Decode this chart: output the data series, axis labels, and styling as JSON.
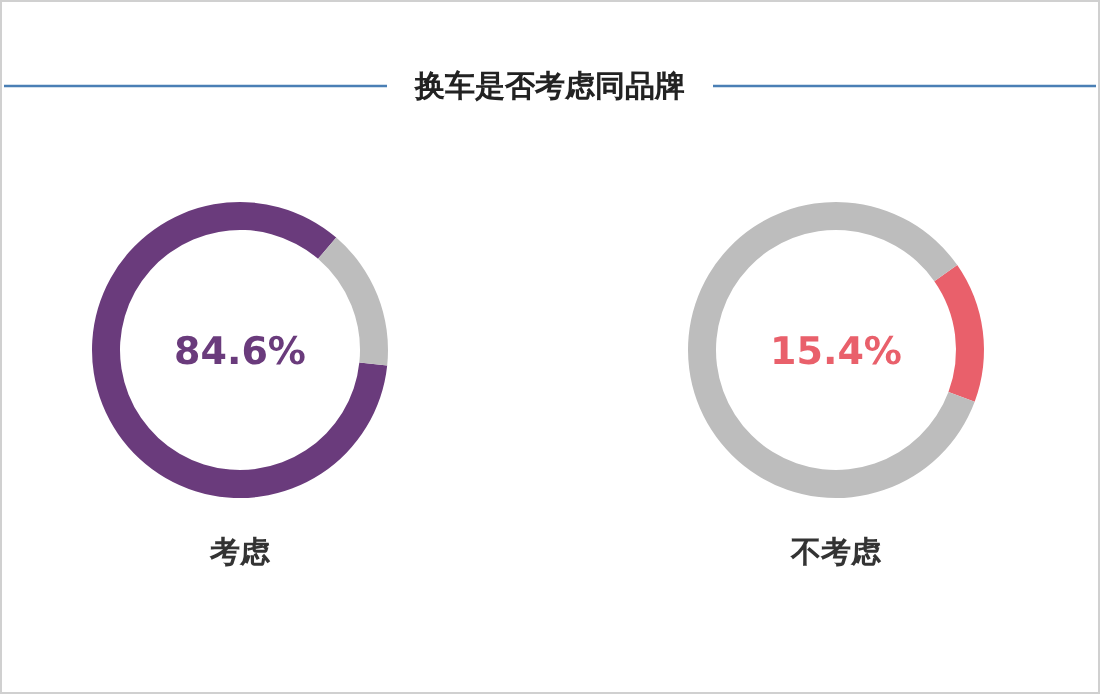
{
  "chart_data": [
    {
      "type": "other",
      "title": "换车是否考虑同品牌"
    },
    {
      "type": "donut",
      "xlabel": "考虑",
      "categories": [
        null,
        null
      ],
      "values": [
        84.6,
        15.4
      ],
      "colors": [
        "#6a3b7c",
        "#bdbdbd"
      ],
      "annotations": [
        "84.6%"
      ]
    },
    {
      "type": "donut",
      "xlabel": "不考虑",
      "categories": [
        null,
        null
      ],
      "values": [
        15.4,
        84.6
      ],
      "colors": [
        "#e9606b",
        "#bdbdbd"
      ],
      "annotations": [
        "15.4%"
      ]
    }
  ]
}
